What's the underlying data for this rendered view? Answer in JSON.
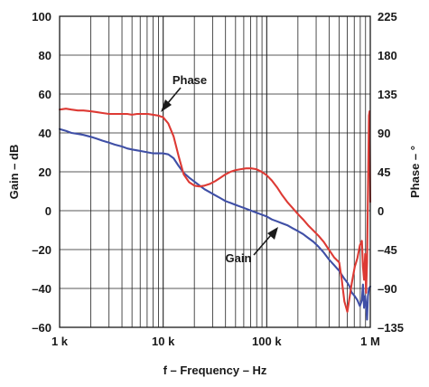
{
  "chart_data": {
    "type": "line",
    "xlabel": "f – Frequency – Hz",
    "ylabel": "Gain – dB",
    "y2label": "Phase – °",
    "x_scale": "log",
    "xlim": [
      1000,
      1000000
    ],
    "ylim": [
      -60,
      100
    ],
    "y2lim": [
      -135,
      225
    ],
    "grid": true,
    "x_ticks": [
      {
        "value": 1000,
        "label": "1 k"
      },
      {
        "value": 10000,
        "label": "10 k"
      },
      {
        "value": 100000,
        "label": "100 k"
      },
      {
        "value": 1000000,
        "label": "1 M"
      }
    ],
    "y_ticks": [
      {
        "value": 100,
        "label": "100"
      },
      {
        "value": 80,
        "label": "80"
      },
      {
        "value": 60,
        "label": "60"
      },
      {
        "value": 40,
        "label": "40"
      },
      {
        "value": 20,
        "label": "20"
      },
      {
        "value": 0,
        "label": "0"
      },
      {
        "value": -20,
        "label": "–20"
      },
      {
        "value": -40,
        "label": "–40"
      },
      {
        "value": -60,
        "label": "–60"
      }
    ],
    "y2_ticks": [
      {
        "value": 225,
        "label": "225"
      },
      {
        "value": 180,
        "label": "180"
      },
      {
        "value": 135,
        "label": "135"
      },
      {
        "value": 90,
        "label": "90"
      },
      {
        "value": 45,
        "label": "45"
      },
      {
        "value": 0,
        "label": "0"
      },
      {
        "value": -45,
        "label": "–45"
      },
      {
        "value": -90,
        "label": "–90"
      },
      {
        "value": -135,
        "label": "–135"
      }
    ],
    "series": [
      {
        "name": "Gain",
        "axis": "left",
        "color": "#3f4fa6",
        "unit": "dB",
        "x": [
          1000,
          1150,
          1300,
          1500,
          1700,
          2000,
          2300,
          2600,
          3000,
          3400,
          4000,
          4500,
          5000,
          5600,
          6300,
          7100,
          8000,
          9000,
          10000,
          11200,
          12600,
          14100,
          15800,
          17800,
          20000,
          22400,
          25100,
          28200,
          31600,
          35500,
          39800,
          44700,
          50100,
          56200,
          63100,
          70800,
          79400,
          89100,
          100000,
          112000,
          126000,
          141000,
          158000,
          178000,
          200000,
          224000,
          251000,
          282000,
          316000,
          355000,
          398000,
          447000,
          501000,
          530000,
          562000,
          600000,
          631000,
          660000,
          708000,
          750000,
          794000,
          830000,
          850000,
          870000,
          891000,
          910000,
          930000,
          950000,
          970000,
          1000000
        ],
        "y": [
          42,
          41,
          40,
          39.5,
          39,
          38,
          37,
          36,
          35,
          34,
          33,
          32,
          31.5,
          31,
          30.5,
          30,
          29.5,
          29.5,
          29.5,
          29,
          27,
          23,
          19.5,
          17,
          15,
          13,
          11,
          9.5,
          8,
          6.5,
          5,
          4,
          3,
          2,
          1,
          0,
          -1,
          -2,
          -3,
          -4.5,
          -5.5,
          -6.5,
          -7.5,
          -9,
          -10.5,
          -12,
          -14,
          -16,
          -18.5,
          -21.5,
          -25,
          -28,
          -31,
          -33,
          -35,
          -37,
          -39,
          -42,
          -44,
          -46,
          -49,
          -46,
          -38,
          -50,
          -44,
          -48,
          -56,
          -44,
          -40,
          -39
        ]
      },
      {
        "name": "Phase",
        "axis": "right",
        "color": "#dd3a34",
        "unit": "°",
        "x": [
          1000,
          1150,
          1300,
          1500,
          1700,
          2000,
          2300,
          2600,
          3000,
          3400,
          4000,
          4500,
          5000,
          5600,
          6300,
          7100,
          8000,
          9000,
          10000,
          11200,
          12600,
          14100,
          15800,
          17800,
          20000,
          22400,
          25100,
          28200,
          31600,
          35500,
          39800,
          44700,
          50100,
          56200,
          63100,
          70800,
          79400,
          89100,
          100000,
          112000,
          126000,
          141000,
          158000,
          178000,
          200000,
          224000,
          251000,
          282000,
          316000,
          355000,
          398000,
          447000,
          501000,
          530000,
          562000,
          600000,
          631000,
          660000,
          708000,
          750000,
          794000,
          830000,
          850000,
          870000,
          891000,
          910000,
          930000,
          950000,
          970000,
          985000,
          1000000
        ],
        "y": [
          117,
          118,
          117,
          116,
          116,
          115,
          114,
          113,
          112,
          112,
          112,
          112,
          111,
          112,
          112,
          112,
          111,
          110,
          108,
          101,
          86,
          63,
          42,
          33,
          29,
          28,
          29,
          31,
          34,
          38,
          42,
          45,
          47,
          48,
          49,
          49,
          48,
          45,
          41,
          35,
          27,
          18,
          10,
          3,
          -4,
          -10,
          -17,
          -23,
          -29,
          -36,
          -45,
          -54,
          -60,
          -80,
          -105,
          -117,
          -100,
          -85,
          -65,
          -55,
          -40,
          -35,
          -65,
          -80,
          -50,
          -95,
          -60,
          20,
          110,
          115,
          10
        ]
      }
    ],
    "annotations": [
      {
        "text": "Phase",
        "target_series": "Phase"
      },
      {
        "text": "Gain",
        "target_series": "Gain"
      }
    ]
  }
}
